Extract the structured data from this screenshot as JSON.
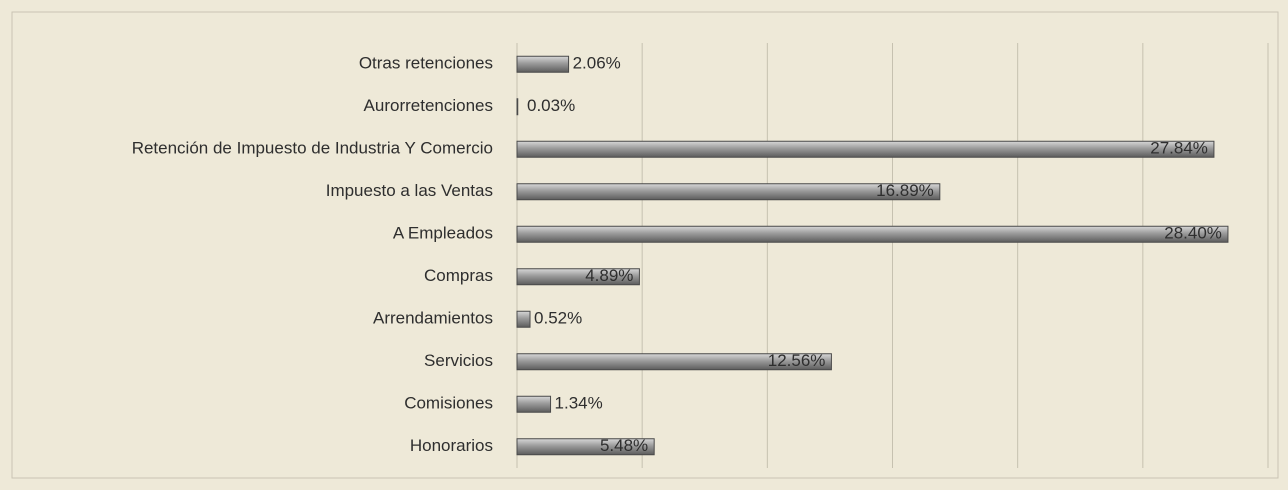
{
  "chart_data": {
    "type": "bar",
    "orientation": "horizontal",
    "categories": [
      "Otras retenciones",
      "Aurorretenciones",
      "Retención de Impuesto de Industria Y Comercio",
      "Impuesto a las Ventas",
      "A Empleados",
      "Compras",
      "Arrendamientos",
      "Servicios",
      "Comisiones",
      "Honorarios"
    ],
    "values": [
      2.06,
      0.03,
      27.84,
      16.89,
      28.4,
      4.89,
      0.52,
      12.56,
      1.34,
      5.48
    ],
    "value_labels": [
      "2.06%",
      "0.03%",
      "27.84%",
      "16.89%",
      "28.40%",
      "4.89%",
      "0.52%",
      "12.56%",
      "1.34%",
      "5.48%"
    ],
    "color": "#8a8a8a",
    "xlim": [
      0,
      30
    ],
    "xticks": [
      0,
      5,
      10,
      15,
      20,
      25,
      30
    ],
    "grid": true
  }
}
